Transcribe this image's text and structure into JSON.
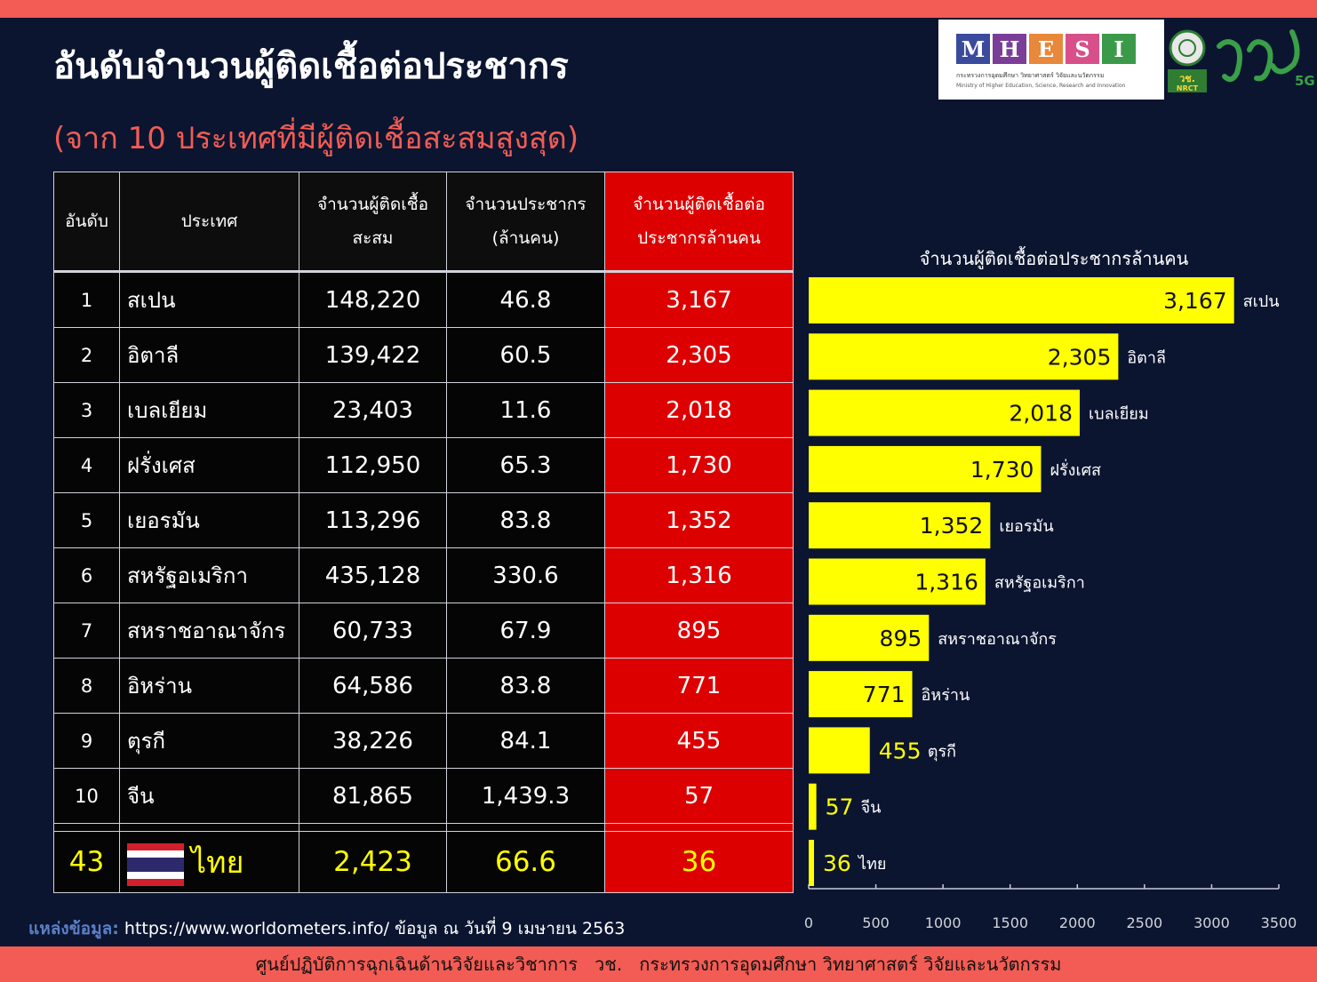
{
  "header": {
    "title": "อันดับจำนวนผู้ติดเชื้อต่อประชากร",
    "subtitle": "(จาก 10 ประเทศที่มีผู้ติดเชื้อสะสมสูงสุด)"
  },
  "logos": {
    "mhesi_letters": [
      "M",
      "H",
      "E",
      "S",
      "I"
    ],
    "mhesi_colors": [
      "#3a4a9c",
      "#7a3e98",
      "#e8883a",
      "#d84f8a",
      "#3a9a49"
    ],
    "mhesi_th": "กระทรวงการอุดมศึกษา วิทยาศาสตร์ วิจัยและนวัตกรรม",
    "mhesi_en": "Ministry of Higher Education, Science, Research and Innovation",
    "nrct_label": "วช.",
    "nrct_sub": "NRCT",
    "brand_mark": "วช",
    "brand_suffix": "5G"
  },
  "table": {
    "headers": {
      "rank": "อันดับ",
      "country": "ประเทศ",
      "cases_1": "จำนวนผู้ติดเชื้อ",
      "cases_2": "สะสม",
      "pop_1": "จำนวนประชากร",
      "pop_2": "(ล้านคน)",
      "per_million_1": "จำนวนผู้ติดเชื้อต่อ",
      "per_million_2": "ประชากรล้านคน"
    },
    "rows": [
      {
        "rank": "1",
        "country": "สเปน",
        "cases": "148,220",
        "population": "46.8",
        "per_million": "3,167"
      },
      {
        "rank": "2",
        "country": "อิตาลี",
        "cases": "139,422",
        "population": "60.5",
        "per_million": "2,305"
      },
      {
        "rank": "3",
        "country": "เบลเยียม",
        "cases": "23,403",
        "population": "11.6",
        "per_million": "2,018"
      },
      {
        "rank": "4",
        "country": "ฝรั่งเศส",
        "cases": "112,950",
        "population": "65.3",
        "per_million": "1,730"
      },
      {
        "rank": "5",
        "country": "เยอรมัน",
        "cases": "113,296",
        "population": "83.8",
        "per_million": "1,352"
      },
      {
        "rank": "6",
        "country": "สหรัฐอเมริกา",
        "cases": "435,128",
        "population": "330.6",
        "per_million": "1,316"
      },
      {
        "rank": "7",
        "country": "สหราชอาณาจักร",
        "cases": "60,733",
        "population": "67.9",
        "per_million": "895"
      },
      {
        "rank": "8",
        "country": "อิหร่าน",
        "cases": "64,586",
        "population": "83.8",
        "per_million": "771"
      },
      {
        "rank": "9",
        "country": "ตุรกี",
        "cases": "38,226",
        "population": "84.1",
        "per_million": "455"
      },
      {
        "rank": "10",
        "country": "จีน",
        "cases": "81,865",
        "population": "1,439.3",
        "per_million": "57"
      }
    ],
    "thai_row": {
      "rank": "43",
      "country": "ไทย",
      "cases": "2,423",
      "population": "66.6",
      "per_million": "36"
    }
  },
  "chart_data": {
    "type": "bar",
    "orientation": "horizontal",
    "title": "จำนวนผู้ติดเชื้อต่อประชากรล้านคน",
    "categories": [
      "สเปน",
      "อิตาลี",
      "เบลเยียม",
      "ฝรั่งเศส",
      "เยอรมัน",
      "สหรัฐอเมริกา",
      "สหราชอาณาจักร",
      "อิหร่าน",
      "ตุรกี",
      "จีน",
      "ไทย"
    ],
    "values": [
      3167,
      2305,
      2018,
      1730,
      1352,
      1316,
      895,
      771,
      455,
      57,
      36
    ],
    "value_labels": [
      "3,167",
      "2,305",
      "2,018",
      "1,730",
      "1,352",
      "1,316",
      "895",
      "771",
      "455",
      "57",
      "36"
    ],
    "xlim": [
      0,
      3500
    ],
    "xticks": [
      0,
      500,
      1000,
      1500,
      2000,
      2500,
      3000,
      3500
    ],
    "bar_color": "#ffff00",
    "grid": false
  },
  "source": {
    "label": "แหล่งข้อมูล:",
    "text": "https://www.worldometers.info/ ข้อมูล ณ วันที่ 9 เมษายน 2563"
  },
  "footer": {
    "text": "ศูนย์ปฏิบัติการฉุกเฉินด้านวิจัยและวิชาการ   วช.   กระทรวงการอุดมศึกษา วิทยาศาสตร์ วิจัยและนวัตกรรม"
  },
  "colors": {
    "background": "#0b1530",
    "accent": "#f25c54",
    "highlight_column": "#dd0000",
    "thai_row_text": "#ffff00"
  }
}
